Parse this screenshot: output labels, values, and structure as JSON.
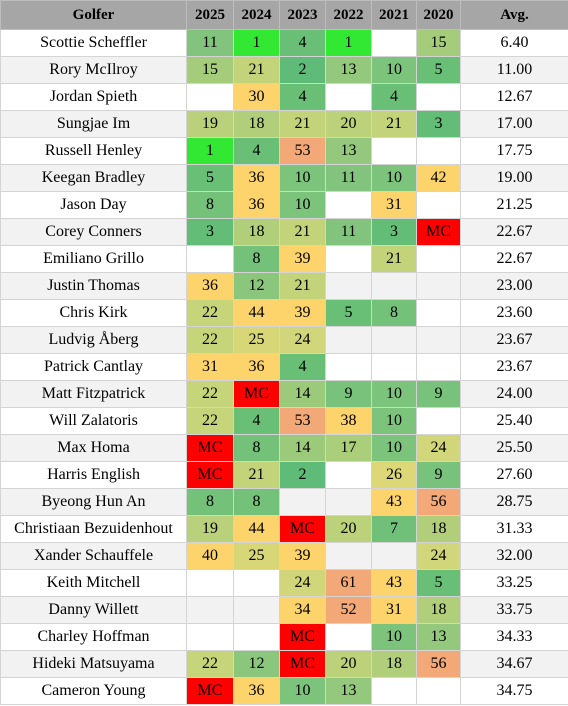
{
  "headers": [
    "Golfer",
    "2025",
    "2024",
    "2023",
    "2022",
    "2021",
    "2020",
    "Avg."
  ],
  "colors": {
    "bright_green": "#33e833",
    "green_dark": "#6abf76",
    "green_mid": "#8ecb7c",
    "olive": "#c2d37a",
    "yellow": "#fdd46c",
    "orange": "#f3a878",
    "mc_red": "#ff0000",
    "header_bg": "#a6a6a6",
    "stripe_bg": "#f2f2f2"
  },
  "rows": [
    {
      "golfer": "Scottie Scheffler",
      "avg": "6.40",
      "cells": [
        {
          "v": "11",
          "c": "#82c47d"
        },
        {
          "v": "1",
          "c": "#33e833"
        },
        {
          "v": "4",
          "c": "#6abf76"
        },
        {
          "v": "1",
          "c": "#33e833"
        },
        {
          "v": "",
          "c": ""
        },
        {
          "v": "15",
          "c": "#a4cc7a"
        }
      ]
    },
    {
      "golfer": "Rory McIlroy",
      "avg": "11.00",
      "cells": [
        {
          "v": "15",
          "c": "#a4cc7a"
        },
        {
          "v": "21",
          "c": "#c2d37a"
        },
        {
          "v": "2",
          "c": "#5fbc78"
        },
        {
          "v": "13",
          "c": "#94c87c"
        },
        {
          "v": "10",
          "c": "#7cc37c"
        },
        {
          "v": "5",
          "c": "#6abf76"
        }
      ]
    },
    {
      "golfer": "Jordan Spieth",
      "avg": "12.67",
      "cells": [
        {
          "v": "",
          "c": ""
        },
        {
          "v": "30",
          "c": "#fdd46c"
        },
        {
          "v": "4",
          "c": "#6abf76"
        },
        {
          "v": "",
          "c": ""
        },
        {
          "v": "4",
          "c": "#6abf76"
        },
        {
          "v": "",
          "c": ""
        }
      ]
    },
    {
      "golfer": "Sungjae Im",
      "avg": "17.00",
      "cells": [
        {
          "v": "19",
          "c": "#b9d17a"
        },
        {
          "v": "18",
          "c": "#b1cf7b"
        },
        {
          "v": "21",
          "c": "#c2d37a"
        },
        {
          "v": "20",
          "c": "#bcd27a"
        },
        {
          "v": "21",
          "c": "#c2d37a"
        },
        {
          "v": "3",
          "c": "#63bd77"
        }
      ]
    },
    {
      "golfer": "Russell Henley",
      "avg": "17.75",
      "cells": [
        {
          "v": "1",
          "c": "#33e833"
        },
        {
          "v": "4",
          "c": "#6abf76"
        },
        {
          "v": "53",
          "c": "#f3a878"
        },
        {
          "v": "13",
          "c": "#94c87c"
        },
        {
          "v": "",
          "c": ""
        },
        {
          "v": "",
          "c": ""
        }
      ]
    },
    {
      "golfer": "Keegan Bradley",
      "avg": "19.00",
      "cells": [
        {
          "v": "5",
          "c": "#6abf76"
        },
        {
          "v": "36",
          "c": "#fdd46c"
        },
        {
          "v": "10",
          "c": "#7cc37c"
        },
        {
          "v": "11",
          "c": "#82c47d"
        },
        {
          "v": "10",
          "c": "#7cc37c"
        },
        {
          "v": "42",
          "c": "#fdd46c"
        }
      ]
    },
    {
      "golfer": "Jason Day",
      "avg": "21.25",
      "cells": [
        {
          "v": "8",
          "c": "#74c17a"
        },
        {
          "v": "36",
          "c": "#fdd46c"
        },
        {
          "v": "10",
          "c": "#7cc37c"
        },
        {
          "v": "",
          "c": ""
        },
        {
          "v": "31",
          "c": "#fdd46c"
        },
        {
          "v": "",
          "c": ""
        }
      ]
    },
    {
      "golfer": "Corey Conners",
      "avg": "22.67",
      "cells": [
        {
          "v": "3",
          "c": "#63bd77"
        },
        {
          "v": "18",
          "c": "#b1cf7b"
        },
        {
          "v": "21",
          "c": "#c2d37a"
        },
        {
          "v": "11",
          "c": "#82c47d"
        },
        {
          "v": "3",
          "c": "#63bd77"
        },
        {
          "v": "MC",
          "c": "#ff0000"
        }
      ]
    },
    {
      "golfer": "Emiliano Grillo",
      "avg": "22.67",
      "cells": [
        {
          "v": "",
          "c": ""
        },
        {
          "v": "8",
          "c": "#74c17a"
        },
        {
          "v": "39",
          "c": "#fdd46c"
        },
        {
          "v": "",
          "c": ""
        },
        {
          "v": "21",
          "c": "#c2d37a"
        },
        {
          "v": "",
          "c": ""
        }
      ]
    },
    {
      "golfer": "Justin Thomas",
      "avg": "23.00",
      "cells": [
        {
          "v": "36",
          "c": "#fdd46c"
        },
        {
          "v": "12",
          "c": "#8ac77c"
        },
        {
          "v": "21",
          "c": "#c2d37a"
        },
        {
          "v": "",
          "c": ""
        },
        {
          "v": "",
          "c": ""
        },
        {
          "v": "",
          "c": ""
        }
      ]
    },
    {
      "golfer": "Chris Kirk",
      "avg": "23.60",
      "cells": [
        {
          "v": "22",
          "c": "#c6d47a"
        },
        {
          "v": "44",
          "c": "#fdd46c"
        },
        {
          "v": "39",
          "c": "#fdd46c"
        },
        {
          "v": "5",
          "c": "#6abf76"
        },
        {
          "v": "8",
          "c": "#74c17a"
        },
        {
          "v": "",
          "c": ""
        }
      ]
    },
    {
      "golfer": "Ludvig Åberg",
      "avg": "23.67",
      "cells": [
        {
          "v": "22",
          "c": "#c6d47a"
        },
        {
          "v": "25",
          "c": "#d8d777"
        },
        {
          "v": "24",
          "c": "#d0d679"
        },
        {
          "v": "",
          "c": ""
        },
        {
          "v": "",
          "c": ""
        },
        {
          "v": "",
          "c": ""
        }
      ]
    },
    {
      "golfer": "Patrick Cantlay",
      "avg": "23.67",
      "cells": [
        {
          "v": "31",
          "c": "#fdd46c"
        },
        {
          "v": "36",
          "c": "#fdd46c"
        },
        {
          "v": "4",
          "c": "#6abf76"
        },
        {
          "v": "",
          "c": ""
        },
        {
          "v": "",
          "c": ""
        },
        {
          "v": "",
          "c": ""
        }
      ]
    },
    {
      "golfer": "Matt Fitzpatrick",
      "avg": "24.00",
      "cells": [
        {
          "v": "22",
          "c": "#c6d47a"
        },
        {
          "v": "MC",
          "c": "#ff0000"
        },
        {
          "v": "14",
          "c": "#9cca7b"
        },
        {
          "v": "9",
          "c": "#78c27b"
        },
        {
          "v": "10",
          "c": "#7cc37c"
        },
        {
          "v": "9",
          "c": "#78c27b"
        }
      ]
    },
    {
      "golfer": "Will Zalatoris",
      "avg": "25.40",
      "cells": [
        {
          "v": "22",
          "c": "#c6d47a"
        },
        {
          "v": "4",
          "c": "#6abf76"
        },
        {
          "v": "53",
          "c": "#f3a878"
        },
        {
          "v": "38",
          "c": "#fdd46c"
        },
        {
          "v": "10",
          "c": "#7cc37c"
        },
        {
          "v": "",
          "c": ""
        }
      ]
    },
    {
      "golfer": "Max Homa",
      "avg": "25.50",
      "cells": [
        {
          "v": "MC",
          "c": "#ff0000"
        },
        {
          "v": "8",
          "c": "#74c17a"
        },
        {
          "v": "14",
          "c": "#9cca7b"
        },
        {
          "v": "17",
          "c": "#abce7b"
        },
        {
          "v": "10",
          "c": "#7cc37c"
        },
        {
          "v": "24",
          "c": "#d0d679"
        }
      ]
    },
    {
      "golfer": "Harris English",
      "avg": "27.60",
      "cells": [
        {
          "v": "MC",
          "c": "#ff0000"
        },
        {
          "v": "21",
          "c": "#c2d37a"
        },
        {
          "v": "2",
          "c": "#5fbc78"
        },
        {
          "v": "",
          "c": ""
        },
        {
          "v": "26",
          "c": "#dcd877"
        },
        {
          "v": "9",
          "c": "#78c27b"
        }
      ]
    },
    {
      "golfer": "Byeong Hun An",
      "avg": "28.75",
      "cells": [
        {
          "v": "8",
          "c": "#74c17a"
        },
        {
          "v": "8",
          "c": "#74c17a"
        },
        {
          "v": "",
          "c": ""
        },
        {
          "v": "",
          "c": ""
        },
        {
          "v": "43",
          "c": "#fdd46c"
        },
        {
          "v": "56",
          "c": "#f3a878"
        }
      ]
    },
    {
      "golfer": "Christiaan Bezuidenhout",
      "avg": "31.33",
      "cells": [
        {
          "v": "19",
          "c": "#b9d17a"
        },
        {
          "v": "44",
          "c": "#fdd46c"
        },
        {
          "v": "MC",
          "c": "#ff0000"
        },
        {
          "v": "20",
          "c": "#bcd27a"
        },
        {
          "v": "7",
          "c": "#70c079"
        },
        {
          "v": "18",
          "c": "#b1cf7b"
        }
      ]
    },
    {
      "golfer": "Xander Schauffele",
      "avg": "32.00",
      "cells": [
        {
          "v": "40",
          "c": "#fdd46c"
        },
        {
          "v": "25",
          "c": "#d8d777"
        },
        {
          "v": "39",
          "c": "#fdd46c"
        },
        {
          "v": "",
          "c": ""
        },
        {
          "v": "",
          "c": ""
        },
        {
          "v": "24",
          "c": "#d0d679"
        }
      ]
    },
    {
      "golfer": "Keith Mitchell",
      "avg": "33.25",
      "cells": [
        {
          "v": "",
          "c": ""
        },
        {
          "v": "",
          "c": ""
        },
        {
          "v": "24",
          "c": "#d0d679"
        },
        {
          "v": "61",
          "c": "#f3a878"
        },
        {
          "v": "43",
          "c": "#fdd46c"
        },
        {
          "v": "5",
          "c": "#6abf76"
        }
      ]
    },
    {
      "golfer": "Danny Willett",
      "avg": "33.75",
      "cells": [
        {
          "v": "",
          "c": ""
        },
        {
          "v": "",
          "c": ""
        },
        {
          "v": "34",
          "c": "#fdd46c"
        },
        {
          "v": "52",
          "c": "#f3a878"
        },
        {
          "v": "31",
          "c": "#fdd46c"
        },
        {
          "v": "18",
          "c": "#b1cf7b"
        }
      ]
    },
    {
      "golfer": "Charley Hoffman",
      "avg": "34.33",
      "cells": [
        {
          "v": "",
          "c": ""
        },
        {
          "v": "",
          "c": ""
        },
        {
          "v": "MC",
          "c": "#ff0000"
        },
        {
          "v": "",
          "c": ""
        },
        {
          "v": "10",
          "c": "#7cc37c"
        },
        {
          "v": "13",
          "c": "#94c87c"
        }
      ]
    },
    {
      "golfer": "Hideki Matsuyama",
      "avg": "34.67",
      "cells": [
        {
          "v": "22",
          "c": "#c6d47a"
        },
        {
          "v": "12",
          "c": "#8ac77c"
        },
        {
          "v": "MC",
          "c": "#ff0000"
        },
        {
          "v": "20",
          "c": "#bcd27a"
        },
        {
          "v": "18",
          "c": "#b1cf7b"
        },
        {
          "v": "56",
          "c": "#f3a878"
        }
      ]
    },
    {
      "golfer": "Cameron Young",
      "avg": "34.75",
      "cells": [
        {
          "v": "MC",
          "c": "#ff0000"
        },
        {
          "v": "36",
          "c": "#fdd46c"
        },
        {
          "v": "10",
          "c": "#7cc37c"
        },
        {
          "v": "13",
          "c": "#94c87c"
        },
        {
          "v": "",
          "c": ""
        },
        {
          "v": "",
          "c": ""
        }
      ]
    }
  ]
}
